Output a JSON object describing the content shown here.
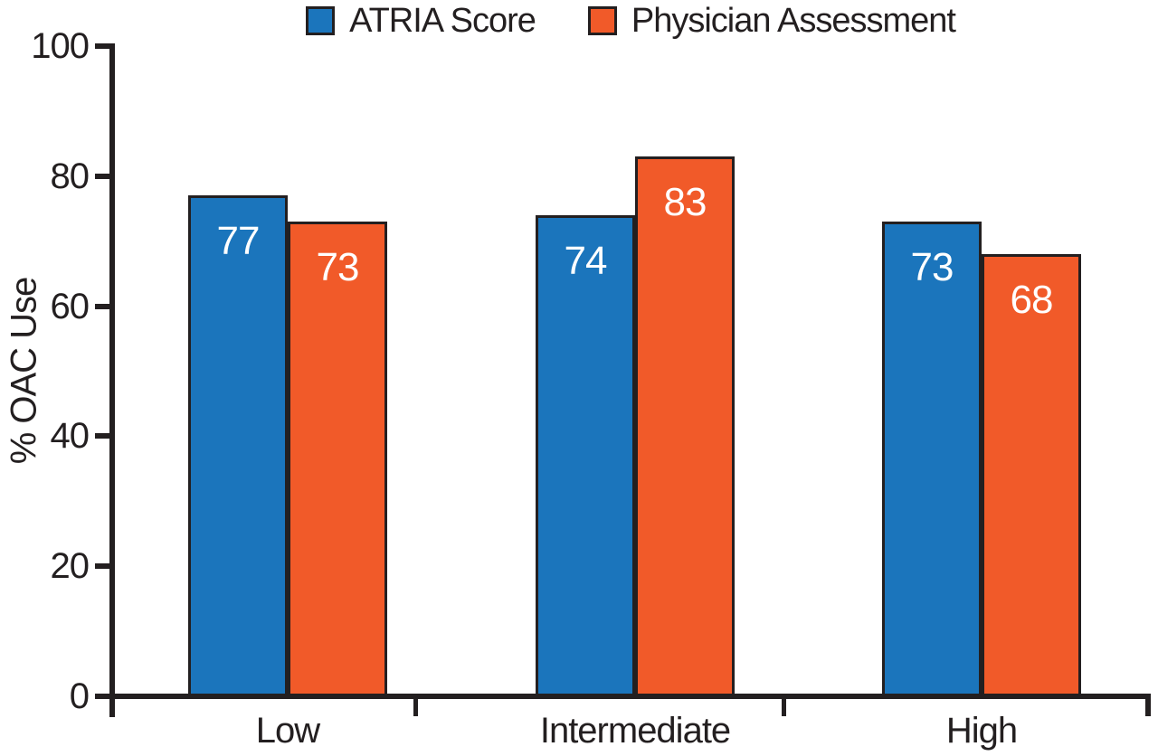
{
  "chart_data": {
    "type": "bar",
    "title": "",
    "categories": [
      "Low",
      "Intermediate",
      "High"
    ],
    "series": [
      {
        "name": "ATRIA Score",
        "color": "#1B75BC",
        "values": [
          77,
          74,
          73
        ]
      },
      {
        "name": "Physician Assessment",
        "color": "#F15A29",
        "values": [
          73,
          83,
          68
        ]
      }
    ],
    "xlabel": "",
    "ylabel": "% OAC Use",
    "ylim": [
      0,
      100
    ],
    "yticks": [
      0,
      20,
      40,
      60,
      80,
      100
    ],
    "grid": false,
    "legend_position": "top",
    "bar_value_labels": [
      {
        "category": "Low",
        "ATRIA Score": 77,
        "Physician Assessment": 73
      },
      {
        "category": "Intermediate",
        "ATRIA Score": 74,
        "Physician Assessment": 83
      },
      {
        "category": "High",
        "ATRIA Score": 73,
        "Physician Assessment": 68
      }
    ],
    "value_label_color": "#FFFFFF",
    "axis_color": "#231F20",
    "background_color": "#FFFFFF"
  }
}
